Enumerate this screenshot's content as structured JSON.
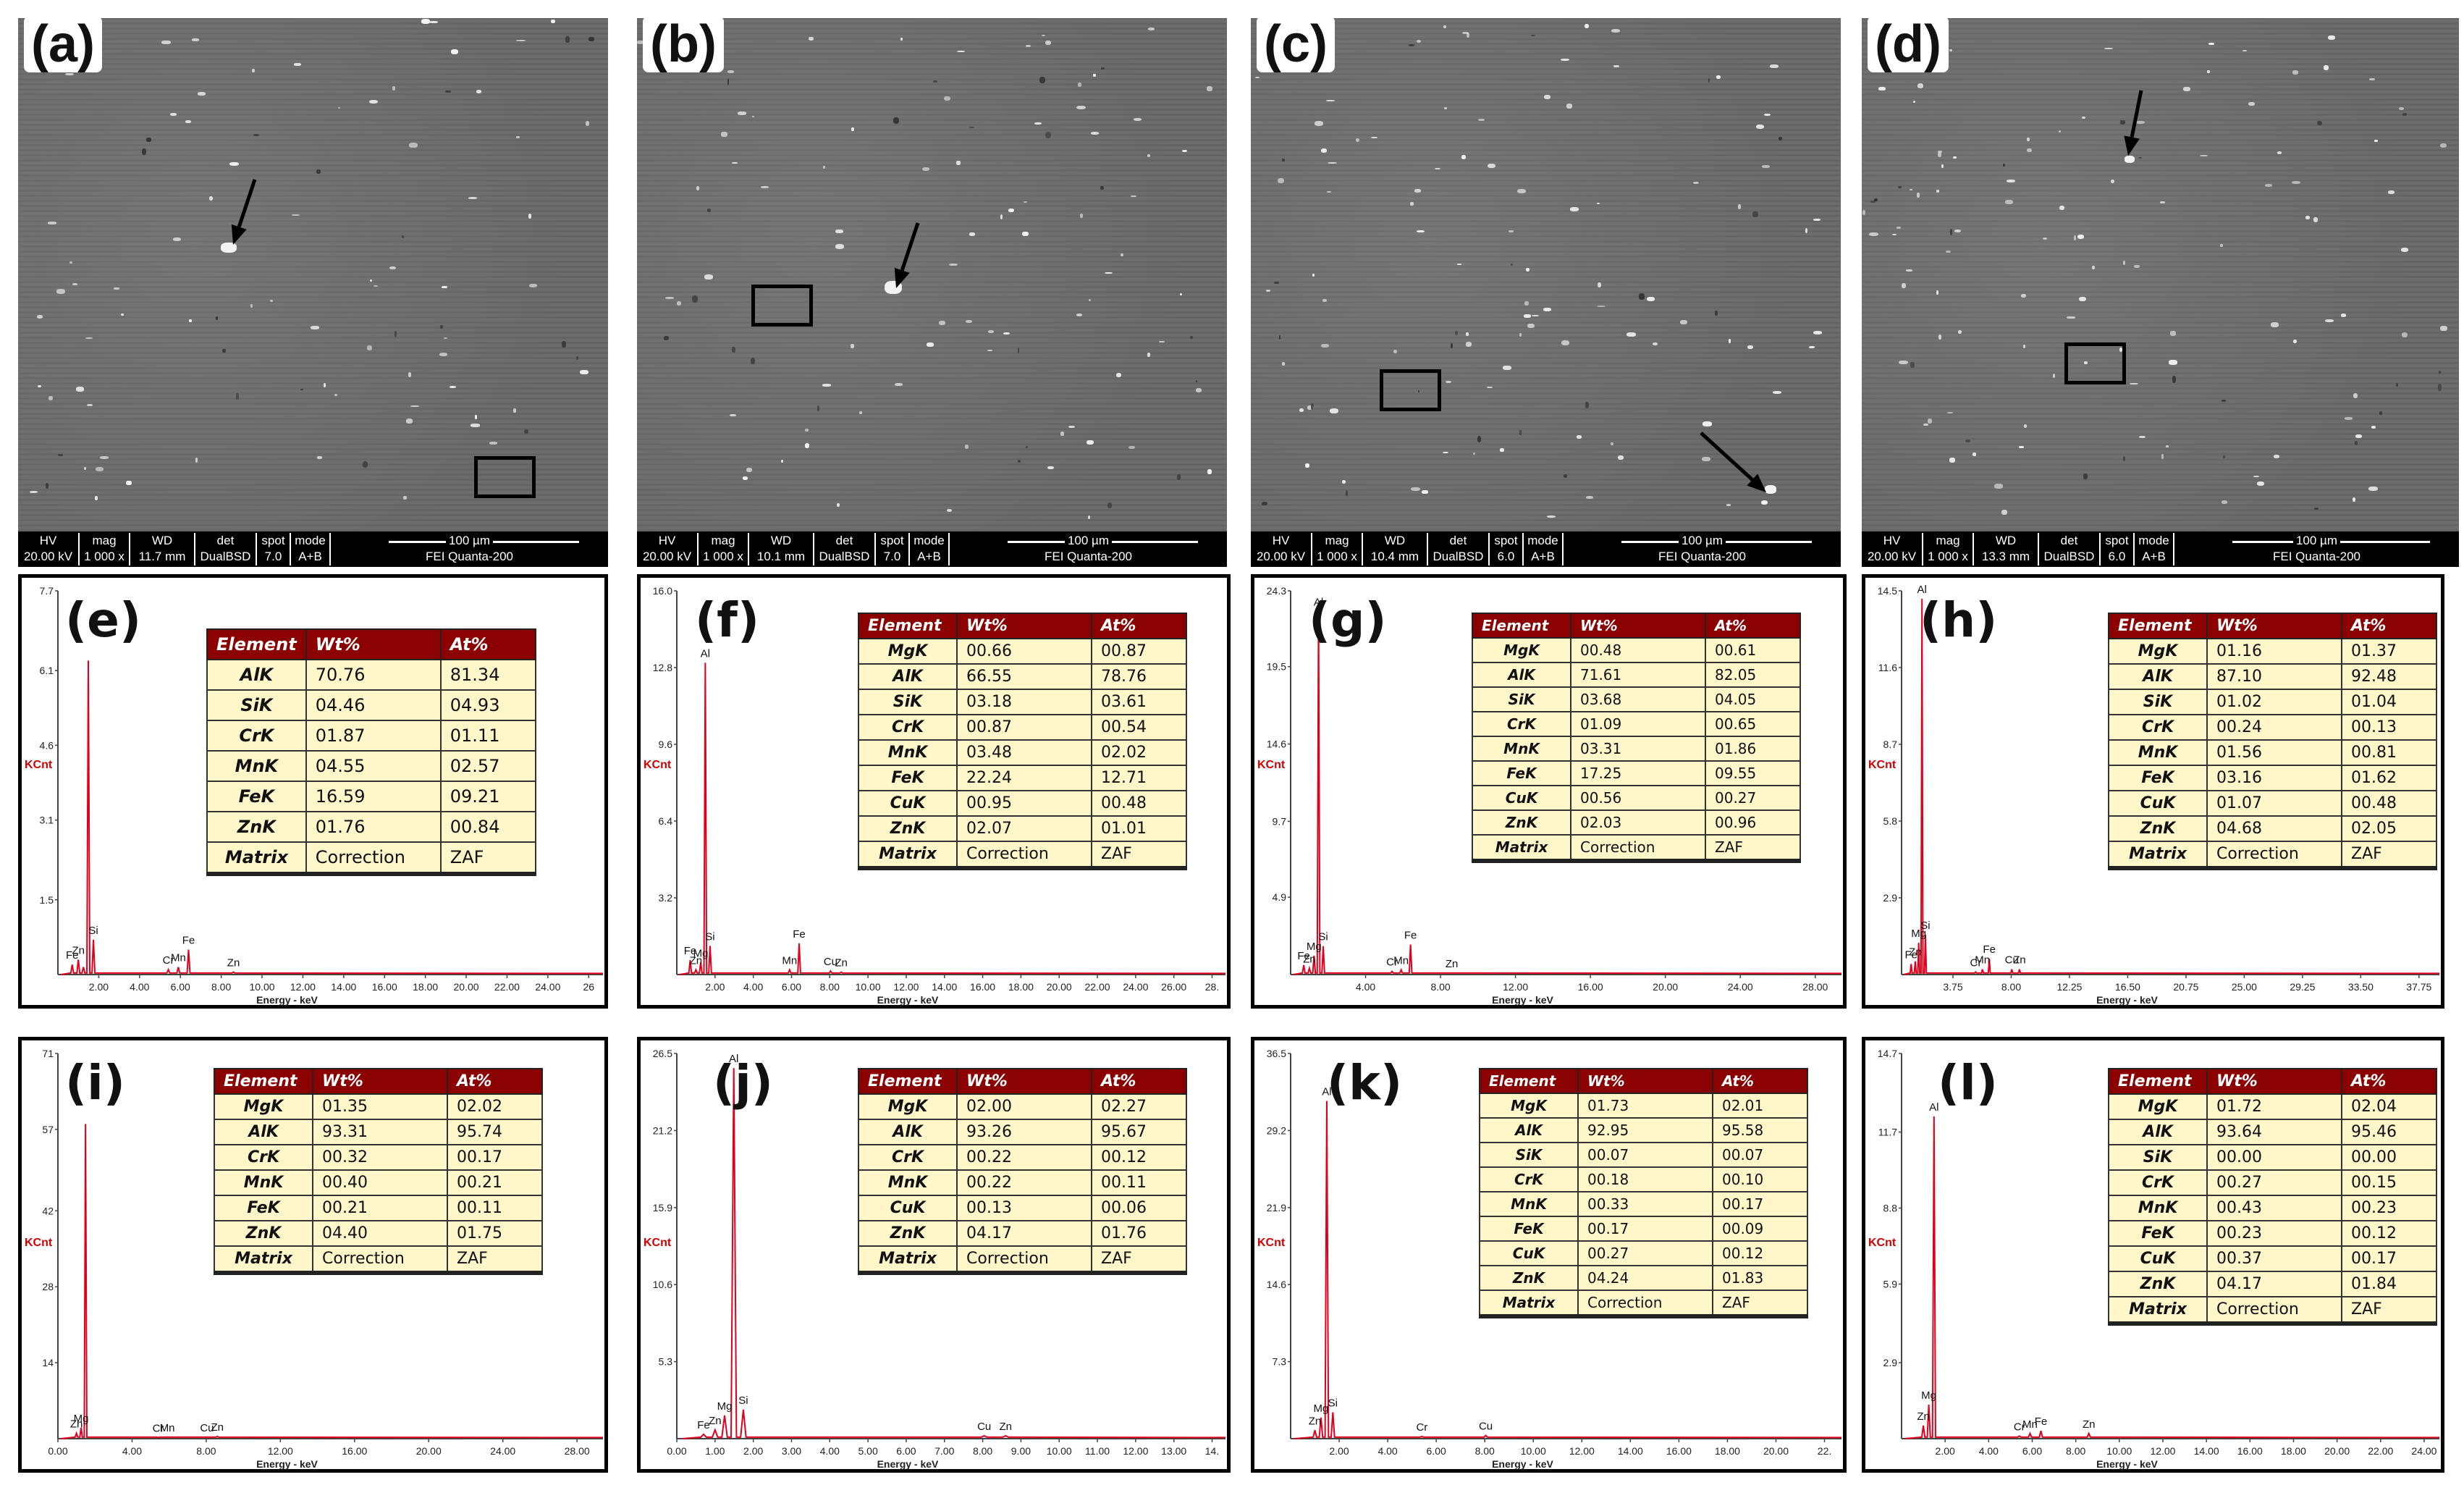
{
  "sem_panels": [
    {
      "label": "(a)",
      "info": {
        "hv_label": "HV",
        "hv": "20.00 kV",
        "mag_label": "mag",
        "mag": "1 000 x",
        "wd_label": "WD",
        "wd": "11.7 mm",
        "det_label": "det",
        "det": "DualBSD",
        "spot_label": "spot",
        "spot": "7.0",
        "mode_label": "mode",
        "mode": "A+B",
        "scale": "100 µm",
        "instrument": "FEI Quanta-200"
      }
    },
    {
      "label": "(b)",
      "info": {
        "hv_label": "HV",
        "hv": "20.00 kV",
        "mag_label": "mag",
        "mag": "1 000 x",
        "wd_label": "WD",
        "wd": "10.1 mm",
        "det_label": "det",
        "det": "DualBSD",
        "spot_label": "spot",
        "spot": "7.0",
        "mode_label": "mode",
        "mode": "A+B",
        "scale": "100 µm",
        "instrument": "FEI Quanta-200"
      }
    },
    {
      "label": "(c)",
      "info": {
        "hv_label": "HV",
        "hv": "20.00 kV",
        "mag_label": "mag",
        "mag": "1 000 x",
        "wd_label": "WD",
        "wd": "10.4 mm",
        "det_label": "det",
        "det": "DualBSD",
        "spot_label": "spot",
        "spot": "6.0",
        "mode_label": "mode",
        "mode": "A+B",
        "scale": "100 µm",
        "instrument": "FEI Quanta-200"
      }
    },
    {
      "label": "(d)",
      "info": {
        "hv_label": "HV",
        "hv": "20.00 kV",
        "mag_label": "mag",
        "mag": "1 000 x",
        "wd_label": "WD",
        "wd": "13.3 mm",
        "det_label": "det",
        "det": "DualBSD",
        "spot_label": "spot",
        "spot": "6.0",
        "mode_label": "mode",
        "mode": "A+B",
        "scale": "100 µm",
        "instrument": "FEI Quanta-200"
      }
    }
  ],
  "table_headers": [
    "Element",
    "Wt%",
    "At%"
  ],
  "eds_panels": [
    {
      "label": "(e)",
      "ylabel": "KCnt",
      "xlabel": "Energy - keV",
      "yticks": [
        "1.5",
        "3.1",
        "4.6",
        "6.1",
        "7.7"
      ],
      "xticks": [
        "2.00",
        "4.00",
        "6.00",
        "8.00",
        "10.00",
        "12.00",
        "14.00",
        "16.00",
        "18.00",
        "20.00",
        "22.00",
        "24.00",
        "26"
      ],
      "peaks": [
        {
          "e": 1.49,
          "h": 6.3,
          "l": ""
        },
        {
          "e": 1.74,
          "h": 0.7,
          "l": "Si"
        },
        {
          "e": 1.25,
          "h": 0.15,
          "l": ""
        },
        {
          "e": 1.0,
          "h": 0.3,
          "l": "Zn"
        },
        {
          "e": 0.7,
          "h": 0.2,
          "l": "Fe"
        },
        {
          "e": 5.41,
          "h": 0.1,
          "l": "Cr"
        },
        {
          "e": 5.9,
          "h": 0.15,
          "l": "Mn"
        },
        {
          "e": 6.4,
          "h": 0.5,
          "l": "Fe"
        },
        {
          "e": 8.6,
          "h": 0.05,
          "l": "Zn"
        }
      ],
      "rows": [
        [
          "AlK",
          "70.76",
          "81.34"
        ],
        [
          "SiK",
          "04.46",
          "04.93"
        ],
        [
          "CrK",
          "01.87",
          "01.11"
        ],
        [
          "MnK",
          "04.55",
          "02.57"
        ],
        [
          "FeK",
          "16.59",
          "09.21"
        ],
        [
          "ZnK",
          "01.76",
          "00.84"
        ],
        [
          "Matrix",
          "Correction",
          "ZAF"
        ]
      ]
    },
    {
      "label": "(f)",
      "ylabel": "KCnt",
      "xlabel": "Energy - keV",
      "yticks": [
        "3.2",
        "6.4",
        "9.6",
        "12.8",
        "16.0"
      ],
      "xticks": [
        "2.00",
        "4.00",
        "6.00",
        "8.00",
        "10.00",
        "12.00",
        "14.00",
        "16.00",
        "18.00",
        "20.00",
        "22.00",
        "24.00",
        "26.00",
        "28."
      ],
      "peaks": [
        {
          "e": 1.49,
          "h": 13.0,
          "l": "Al"
        },
        {
          "e": 1.74,
          "h": 1.2,
          "l": "Si"
        },
        {
          "e": 1.25,
          "h": 0.5,
          "l": "Mg"
        },
        {
          "e": 1.0,
          "h": 0.2,
          "l": "Zn"
        },
        {
          "e": 0.7,
          "h": 0.6,
          "l": "Fe"
        },
        {
          "e": 5.9,
          "h": 0.2,
          "l": "Mn"
        },
        {
          "e": 6.4,
          "h": 1.3,
          "l": "Fe"
        },
        {
          "e": 8.04,
          "h": 0.15,
          "l": "Cu"
        },
        {
          "e": 8.6,
          "h": 0.1,
          "l": "Zn"
        }
      ],
      "rows": [
        [
          "MgK",
          "00.66",
          "00.87"
        ],
        [
          "AlK",
          "66.55",
          "78.76"
        ],
        [
          "SiK",
          "03.18",
          "03.61"
        ],
        [
          "CrK",
          "00.87",
          "00.54"
        ],
        [
          "MnK",
          "03.48",
          "02.02"
        ],
        [
          "FeK",
          "22.24",
          "12.71"
        ],
        [
          "CuK",
          "00.95",
          "00.48"
        ],
        [
          "ZnK",
          "02.07",
          "01.01"
        ],
        [
          "Matrix",
          "Correction",
          "ZAF"
        ]
      ]
    },
    {
      "label": "(g)",
      "ylabel": "KCnt",
      "xlabel": "Energy - keV",
      "yticks": [
        "4.9",
        "9.7",
        "14.6",
        "19.5",
        "24.3"
      ],
      "xticks": [
        "4.00",
        "8.00",
        "12.00",
        "16.00",
        "20.00",
        "24.00",
        "28.00"
      ],
      "peaks": [
        {
          "e": 1.49,
          "h": 23.0,
          "l": "Al"
        },
        {
          "e": 1.74,
          "h": 1.8,
          "l": "Si"
        },
        {
          "e": 1.25,
          "h": 1.2,
          "l": "Mg"
        },
        {
          "e": 1.0,
          "h": 0.4,
          "l": "Zn"
        },
        {
          "e": 0.7,
          "h": 0.6,
          "l": "Fe"
        },
        {
          "e": 5.41,
          "h": 0.2,
          "l": "Cr"
        },
        {
          "e": 5.9,
          "h": 0.3,
          "l": "Mn"
        },
        {
          "e": 6.4,
          "h": 1.9,
          "l": "Fe"
        },
        {
          "e": 8.6,
          "h": 0.1,
          "l": "Zn"
        }
      ],
      "rows": [
        [
          "MgK",
          "00.48",
          "00.61"
        ],
        [
          "AlK",
          "71.61",
          "82.05"
        ],
        [
          "SiK",
          "03.68",
          "04.05"
        ],
        [
          "CrK",
          "01.09",
          "00.65"
        ],
        [
          "MnK",
          "03.31",
          "01.86"
        ],
        [
          "FeK",
          "17.25",
          "09.55"
        ],
        [
          "CuK",
          "00.56",
          "00.27"
        ],
        [
          "ZnK",
          "02.03",
          "00.96"
        ],
        [
          "Matrix",
          "Correction",
          "ZAF"
        ]
      ]
    },
    {
      "label": "(h)",
      "ylabel": "KCnt",
      "xlabel": "Energy - keV",
      "yticks": [
        "2.9",
        "5.8",
        "8.7",
        "11.6",
        "14.5"
      ],
      "xticks": [
        "3.75",
        "8.00",
        "12.25",
        "16.50",
        "20.75",
        "25.00",
        "29.25",
        "33.50",
        "37.75"
      ],
      "peaks": [
        {
          "e": 1.49,
          "h": 14.2,
          "l": "Al"
        },
        {
          "e": 1.74,
          "h": 1.5,
          "l": "Si"
        },
        {
          "e": 1.25,
          "h": 1.2,
          "l": "Mg"
        },
        {
          "e": 1.0,
          "h": 0.5,
          "l": "Zn"
        },
        {
          "e": 0.7,
          "h": 0.4,
          "l": "Fe"
        },
        {
          "e": 5.41,
          "h": 0.1,
          "l": "Cr"
        },
        {
          "e": 5.9,
          "h": 0.2,
          "l": "Mn"
        },
        {
          "e": 6.4,
          "h": 0.6,
          "l": "Fe"
        },
        {
          "e": 8.04,
          "h": 0.2,
          "l": "Cu"
        },
        {
          "e": 8.6,
          "h": 0.2,
          "l": "Zn"
        }
      ],
      "rows": [
        [
          "MgK",
          "01.16",
          "01.37"
        ],
        [
          "AlK",
          "87.10",
          "92.48"
        ],
        [
          "SiK",
          "01.02",
          "01.04"
        ],
        [
          "CrK",
          "00.24",
          "00.13"
        ],
        [
          "MnK",
          "01.56",
          "00.81"
        ],
        [
          "FeK",
          "03.16",
          "01.62"
        ],
        [
          "CuK",
          "01.07",
          "00.48"
        ],
        [
          "ZnK",
          "04.68",
          "02.05"
        ],
        [
          "Matrix",
          "Correction",
          "ZAF"
        ]
      ]
    },
    {
      "label": "(i)",
      "ylabel": "KCnt",
      "xlabel": "Energy - keV",
      "yticks": [
        "14",
        "28",
        "42",
        "57",
        "71"
      ],
      "xticks": [
        "0.00",
        "4.00",
        "8.00",
        "12.00",
        "16.00",
        "20.00",
        "24.00",
        "28.00"
      ],
      "peaks": [
        {
          "e": 1.49,
          "h": 58.0,
          "l": ""
        },
        {
          "e": 1.25,
          "h": 2.0,
          "l": "Mg"
        },
        {
          "e": 1.0,
          "h": 1.0,
          "l": "Zn"
        },
        {
          "e": 5.41,
          "h": 0.2,
          "l": "Cr"
        },
        {
          "e": 5.9,
          "h": 0.3,
          "l": "Mn"
        },
        {
          "e": 8.04,
          "h": 0.3,
          "l": "Cu"
        },
        {
          "e": 8.6,
          "h": 0.4,
          "l": "Zn"
        }
      ],
      "rows": [
        [
          "MgK",
          "01.35",
          "02.02"
        ],
        [
          "AlK",
          "93.31",
          "95.74"
        ],
        [
          "CrK",
          "00.32",
          "00.17"
        ],
        [
          "MnK",
          "00.40",
          "00.21"
        ],
        [
          "FeK",
          "00.21",
          "00.11"
        ],
        [
          "ZnK",
          "04.40",
          "01.75"
        ],
        [
          "Matrix",
          "Correction",
          "ZAF"
        ]
      ]
    },
    {
      "label": "(j)",
      "ylabel": "KCnt",
      "xlabel": "Energy - keV",
      "yticks": [
        "5.3",
        "10.6",
        "15.9",
        "21.2",
        "26.5"
      ],
      "xticks": [
        "0.00",
        "1.00",
        "2.00",
        "3.00",
        "4.00",
        "5.00",
        "6.00",
        "7.00",
        "8.00",
        "9.00",
        "10.00",
        "11.00",
        "12.00",
        "13.00",
        "14."
      ],
      "peaks": [
        {
          "e": 1.49,
          "h": 25.5,
          "l": "Al"
        },
        {
          "e": 1.74,
          "h": 2.0,
          "l": "Si"
        },
        {
          "e": 1.25,
          "h": 1.6,
          "l": "Mg"
        },
        {
          "e": 1.0,
          "h": 0.6,
          "l": "Zn"
        },
        {
          "e": 0.7,
          "h": 0.3,
          "l": "Fe"
        },
        {
          "e": 8.04,
          "h": 0.2,
          "l": "Cu"
        },
        {
          "e": 8.6,
          "h": 0.2,
          "l": "Zn"
        }
      ],
      "rows": [
        [
          "MgK",
          "02.00",
          "02.27"
        ],
        [
          "AlK",
          "93.26",
          "95.67"
        ],
        [
          "CrK",
          "00.22",
          "00.12"
        ],
        [
          "MnK",
          "00.22",
          "00.11"
        ],
        [
          "CuK",
          "00.13",
          "00.06"
        ],
        [
          "ZnK",
          "04.17",
          "01.76"
        ],
        [
          "Matrix",
          "Correction",
          "ZAF"
        ]
      ]
    },
    {
      "label": "(k)",
      "ylabel": "KCnt",
      "xlabel": "Energy - keV",
      "yticks": [
        "7.3",
        "14.6",
        "21.9",
        "29.2",
        "36.5"
      ],
      "xticks": [
        "2.00",
        "4.00",
        "6.00",
        "8.00",
        "10.00",
        "12.00",
        "14.00",
        "16.00",
        "18.00",
        "20.00",
        "22."
      ],
      "peaks": [
        {
          "e": 1.49,
          "h": 32.0,
          "l": "Al"
        },
        {
          "e": 1.74,
          "h": 2.5,
          "l": "Si"
        },
        {
          "e": 1.25,
          "h": 2.0,
          "l": "Mg"
        },
        {
          "e": 1.0,
          "h": 0.8,
          "l": "Zn"
        },
        {
          "e": 5.41,
          "h": 0.2,
          "l": "Cr"
        },
        {
          "e": 8.04,
          "h": 0.3,
          "l": "Cu"
        }
      ],
      "rows": [
        [
          "MgK",
          "01.73",
          "02.01"
        ],
        [
          "AlK",
          "92.95",
          "95.58"
        ],
        [
          "SiK",
          "00.07",
          "00.07"
        ],
        [
          "CrK",
          "00.18",
          "00.10"
        ],
        [
          "MnK",
          "00.33",
          "00.17"
        ],
        [
          "FeK",
          "00.17",
          "00.09"
        ],
        [
          "CuK",
          "00.27",
          "00.12"
        ],
        [
          "ZnK",
          "04.24",
          "01.83"
        ],
        [
          "Matrix",
          "Correction",
          "ZAF"
        ]
      ]
    },
    {
      "label": "(l)",
      "ylabel": "KCnt",
      "xlabel": "Energy - keV",
      "yticks": [
        "2.9",
        "5.9",
        "8.8",
        "11.7",
        "14.7"
      ],
      "xticks": [
        "2.00",
        "4.00",
        "6.00",
        "8.00",
        "10.00",
        "12.00",
        "14.00",
        "16.00",
        "18.00",
        "20.00",
        "22.00",
        "24.00"
      ],
      "peaks": [
        {
          "e": 1.49,
          "h": 12.3,
          "l": "Al"
        },
        {
          "e": 1.25,
          "h": 1.3,
          "l": "Mg"
        },
        {
          "e": 1.0,
          "h": 0.5,
          "l": "Zn"
        },
        {
          "e": 5.41,
          "h": 0.1,
          "l": "Cr"
        },
        {
          "e": 5.9,
          "h": 0.2,
          "l": "Mn"
        },
        {
          "e": 6.4,
          "h": 0.3,
          "l": "Fe"
        },
        {
          "e": 8.6,
          "h": 0.2,
          "l": "Zn"
        }
      ],
      "rows": [
        [
          "MgK",
          "01.72",
          "02.04"
        ],
        [
          "AlK",
          "93.64",
          "95.46"
        ],
        [
          "SiK",
          "00.00",
          "00.00"
        ],
        [
          "CrK",
          "00.27",
          "00.15"
        ],
        [
          "MnK",
          "00.43",
          "00.23"
        ],
        [
          "FeK",
          "00.23",
          "00.12"
        ],
        [
          "CuK",
          "00.37",
          "00.17"
        ],
        [
          "ZnK",
          "04.17",
          "01.84"
        ],
        [
          "Matrix",
          "Correction",
          "ZAF"
        ]
      ]
    }
  ]
}
